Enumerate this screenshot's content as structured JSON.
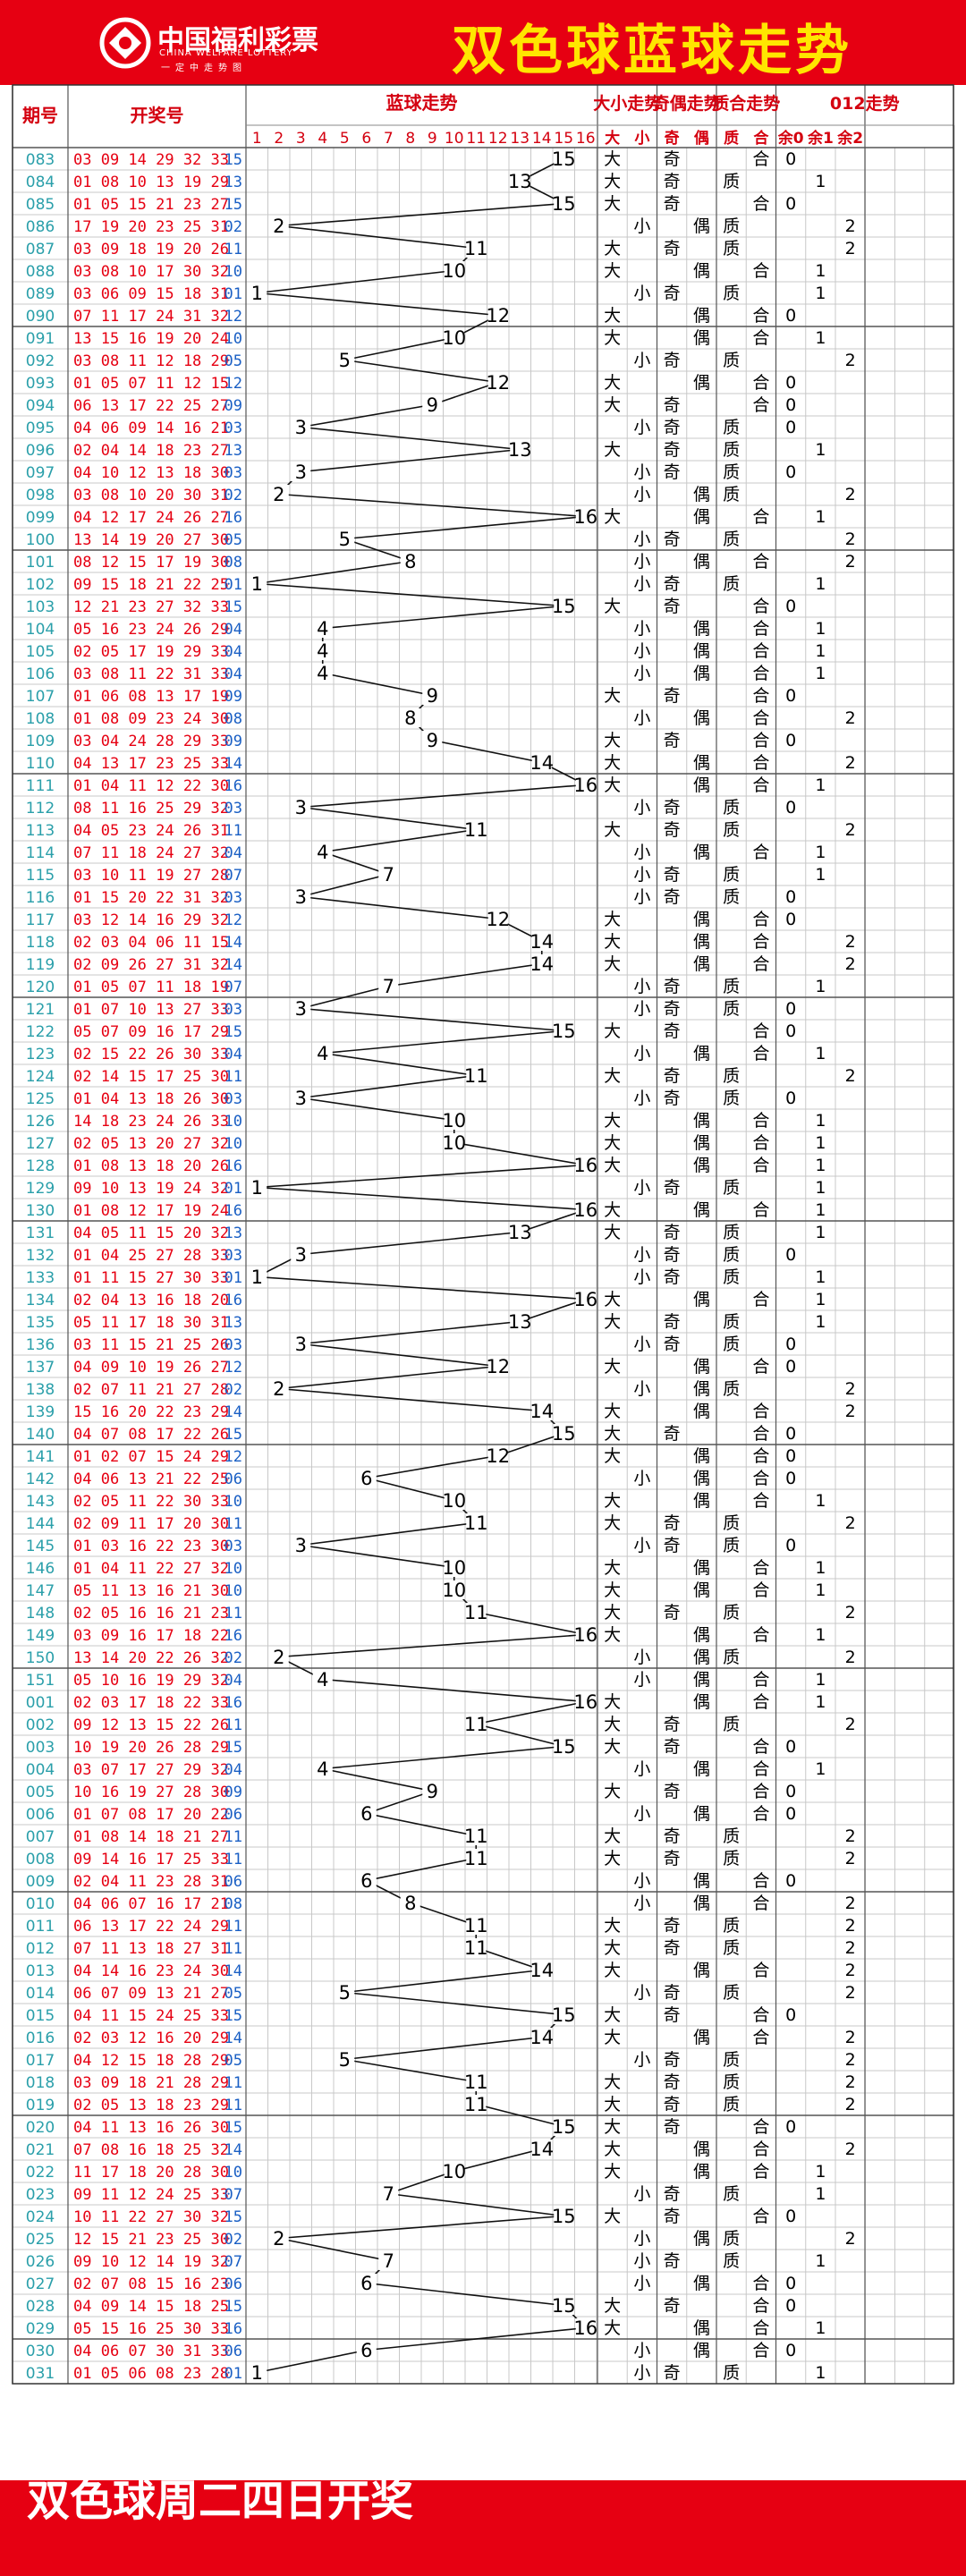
{
  "header": {
    "logo_name": "中国福利彩票",
    "logo_english": "CHINA WELFARE LOTTERY",
    "logo_slogan": "一定中走势图",
    "title": "双色球蓝球走势"
  },
  "footer": {
    "text": "双色球周二四日开奖"
  },
  "colors": {
    "brand_red": "#e60012",
    "title_yellow": "#ffe600",
    "issue_teal": "#2a9faa",
    "header_red": "#d4000f"
  },
  "table_headers": {
    "issue": "期号",
    "numbers": "开奖号",
    "blue_trend": "蓝球走势",
    "big_small": "大小走势",
    "odd_even": "奇偶走势",
    "prime_composite": "质合走势",
    "mod3": "012走势",
    "sub_columns": [
      "1",
      "2",
      "3",
      "4",
      "5",
      "6",
      "7",
      "8",
      "9",
      "10",
      "11",
      "12",
      "13",
      "14",
      "15",
      "16",
      "大",
      "小",
      "奇",
      "偶",
      "质",
      "合",
      "余0",
      "余1",
      "余2"
    ]
  },
  "chart_data": {
    "type": "table",
    "title": "双色球蓝球走势",
    "columns": [
      "期号",
      "开奖号",
      "蓝球"
    ],
    "rows": [
      [
        "083",
        "03 09 14 29 32 33",
        15
      ],
      [
        "084",
        "01 08 10 13 19 29",
        13
      ],
      [
        "085",
        "01 05 15 21 23 27",
        15
      ],
      [
        "086",
        "17 19 20 23 25 31",
        2
      ],
      [
        "087",
        "03 09 18 19 20 26",
        11
      ],
      [
        "088",
        "03 08 10 17 30 32",
        10
      ],
      [
        "089",
        "03 06 09 15 18 31",
        1
      ],
      [
        "090",
        "07 11 17 24 31 32",
        12
      ],
      [
        "091",
        "13 15 16 19 20 24",
        10
      ],
      [
        "092",
        "03 08 11 12 18 29",
        5
      ],
      [
        "093",
        "01 05 07 11 12 15",
        12
      ],
      [
        "094",
        "06 13 17 22 25 27",
        9
      ],
      [
        "095",
        "04 06 09 14 16 21",
        3
      ],
      [
        "096",
        "02 04 14 18 23 27",
        13
      ],
      [
        "097",
        "04 10 12 13 18 30",
        3
      ],
      [
        "098",
        "03 08 10 20 30 31",
        2
      ],
      [
        "099",
        "04 12 17 24 26 27",
        16
      ],
      [
        "100",
        "13 14 19 20 27 30",
        5
      ],
      [
        "101",
        "08 12 15 17 19 30",
        8
      ],
      [
        "102",
        "09 15 18 21 22 25",
        1
      ],
      [
        "103",
        "12 21 23 27 32 33",
        15
      ],
      [
        "104",
        "05 16 23 24 26 29",
        4
      ],
      [
        "105",
        "02 05 17 19 29 33",
        4
      ],
      [
        "106",
        "03 08 11 22 31 33",
        4
      ],
      [
        "107",
        "01 06 08 13 17 19",
        9
      ],
      [
        "108",
        "01 08 09 23 24 30",
        8
      ],
      [
        "109",
        "03 04 24 28 29 33",
        9
      ],
      [
        "110",
        "04 13 17 23 25 33",
        14
      ],
      [
        "111",
        "01 04 11 12 22 30",
        16
      ],
      [
        "112",
        "08 11 16 25 29 32",
        3
      ],
      [
        "113",
        "04 05 23 24 26 31",
        11
      ],
      [
        "114",
        "07 11 18 24 27 32",
        4
      ],
      [
        "115",
        "03 10 11 19 27 28",
        7
      ],
      [
        "116",
        "01 15 20 22 31 32",
        3
      ],
      [
        "117",
        "03 12 14 16 29 32",
        12
      ],
      [
        "118",
        "02 03 04 06 11 15",
        14
      ],
      [
        "119",
        "02 09 26 27 31 32",
        14
      ],
      [
        "120",
        "01 05 07 11 18 19",
        7
      ],
      [
        "121",
        "01 07 10 13 27 33",
        3
      ],
      [
        "122",
        "05 07 09 16 17 29",
        15
      ],
      [
        "123",
        "02 15 22 26 30 33",
        4
      ],
      [
        "124",
        "02 14 15 17 25 30",
        11
      ],
      [
        "125",
        "01 04 13 18 26 30",
        3
      ],
      [
        "126",
        "14 18 23 24 26 33",
        10
      ],
      [
        "127",
        "02 05 13 20 27 32",
        10
      ],
      [
        "128",
        "01 08 13 18 20 26",
        16
      ],
      [
        "129",
        "09 10 13 19 24 32",
        1
      ],
      [
        "130",
        "01 08 12 17 19 24",
        16
      ],
      [
        "131",
        "04 05 11 15 20 32",
        13
      ],
      [
        "132",
        "01 04 25 27 28 33",
        3
      ],
      [
        "133",
        "01 11 15 27 30 33",
        1
      ],
      [
        "134",
        "02 04 13 16 18 20",
        16
      ],
      [
        "135",
        "05 11 17 18 30 31",
        13
      ],
      [
        "136",
        "03 11 15 21 25 26",
        3
      ],
      [
        "137",
        "04 09 10 19 26 27",
        12
      ],
      [
        "138",
        "02 07 11 21 27 28",
        2
      ],
      [
        "139",
        "15 16 20 22 23 29",
        14
      ],
      [
        "140",
        "04 07 08 17 22 26",
        15
      ],
      [
        "141",
        "01 02 07 15 24 29",
        12
      ],
      [
        "142",
        "04 06 13 21 22 25",
        6
      ],
      [
        "143",
        "02 05 11 22 30 33",
        10
      ],
      [
        "144",
        "02 09 11 17 20 30",
        11
      ],
      [
        "145",
        "01 03 16 22 23 30",
        3
      ],
      [
        "146",
        "01 04 11 22 27 32",
        10
      ],
      [
        "147",
        "05 11 13 16 21 30",
        10
      ],
      [
        "148",
        "02 05 16 16 21 23",
        11
      ],
      [
        "149",
        "03 09 16 17 18 22",
        16
      ],
      [
        "150",
        "13 14 20 22 26 32",
        2
      ],
      [
        "151",
        "05 10 16 19 29 32",
        4
      ],
      [
        "001",
        "02 03 17 18 22 33",
        16
      ],
      [
        "002",
        "09 12 13 15 22 26",
        11
      ],
      [
        "003",
        "10 19 20 26 28 29",
        15
      ],
      [
        "004",
        "03 07 17 27 29 32",
        4
      ],
      [
        "005",
        "10 16 19 27 28 30",
        9
      ],
      [
        "006",
        "01 07 08 17 20 22",
        6
      ],
      [
        "007",
        "01 08 14 18 21 27",
        11
      ],
      [
        "008",
        "09 14 16 17 25 33",
        11
      ],
      [
        "009",
        "02 04 11 23 28 31",
        6
      ],
      [
        "010",
        "04 06 07 16 17 21",
        8
      ],
      [
        "011",
        "06 13 17 22 24 29",
        11
      ],
      [
        "012",
        "07 11 13 18 27 31",
        11
      ],
      [
        "013",
        "04 14 16 23 24 30",
        14
      ],
      [
        "014",
        "06 07 09 13 21 27",
        5
      ],
      [
        "015",
        "04 11 15 24 25 33",
        15
      ],
      [
        "016",
        "02 03 12 16 20 29",
        14
      ],
      [
        "017",
        "04 12 15 18 28 29",
        5
      ],
      [
        "018",
        "03 09 18 21 28 29",
        11
      ],
      [
        "019",
        "02 05 13 18 23 29",
        11
      ],
      [
        "020",
        "04 11 13 16 26 30",
        15
      ],
      [
        "021",
        "07 08 16 18 25 32",
        14
      ],
      [
        "022",
        "11 17 18 20 28 30",
        10
      ],
      [
        "023",
        "09 11 12 24 25 33",
        7
      ],
      [
        "024",
        "10 11 22 27 30 32",
        15
      ],
      [
        "025",
        "12 15 21 23 25 30",
        2
      ],
      [
        "026",
        "09 10 12 14 19 32",
        7
      ],
      [
        "027",
        "02 07 08 15 16 23",
        6
      ],
      [
        "028",
        "04 09 14 15 18 25",
        15
      ],
      [
        "029",
        "05 15 16 25 30 33",
        16
      ],
      [
        "030",
        "04 06 07 30 31 33",
        6
      ],
      [
        "031",
        "01 05 06 08 23 28",
        1
      ]
    ]
  }
}
